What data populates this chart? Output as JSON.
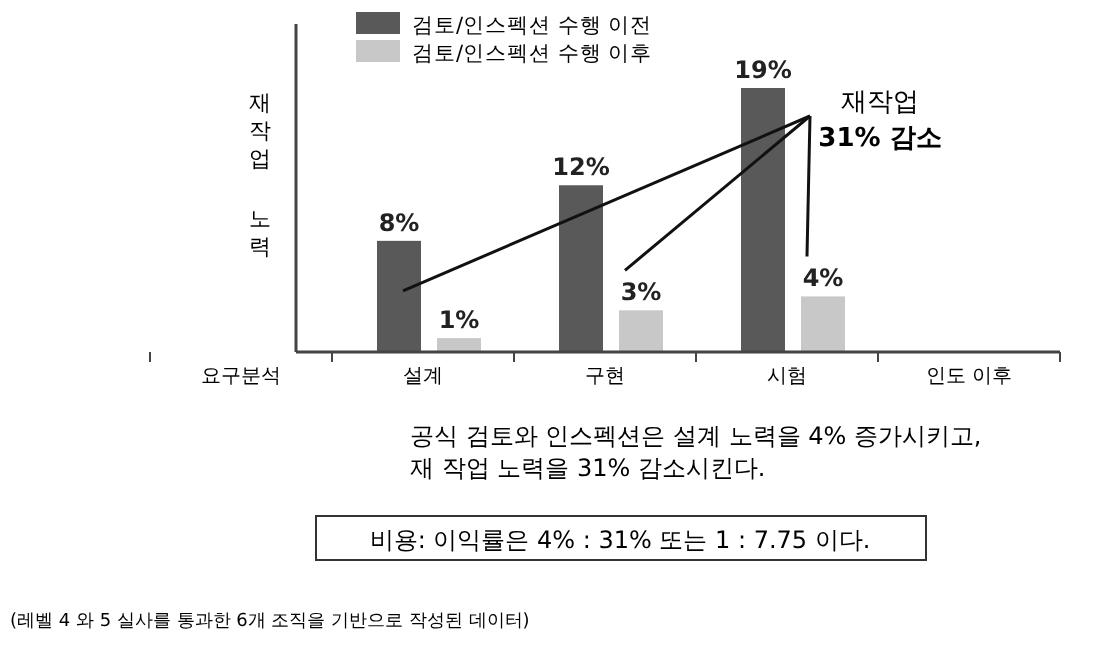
{
  "chart_data": {
    "type": "bar",
    "ylabel": "재작업 노력",
    "categories": [
      "요구분석",
      "설계",
      "구현",
      "시험",
      "인도 이후"
    ],
    "series": [
      {
        "name": "검토/인스펙션 수행 이전",
        "color": "#595959",
        "values": [
          null,
          8,
          12,
          19,
          null
        ],
        "value_labels": [
          null,
          "8%",
          "12%",
          "19%",
          null
        ]
      },
      {
        "name": "검토/인스펙션 수행 이후",
        "color": "#c8c8c8",
        "values": [
          null,
          1,
          3,
          4,
          null
        ],
        "value_labels": [
          null,
          "1%",
          "3%",
          "4%",
          null
        ]
      }
    ],
    "legend": "top left",
    "annotations": [
      "재작업\n31% 감소",
      "공식 검토와 인스펙션은 설계 노력을 4% 증가시키고,\n재 작업 노력을 31% 감소시킨다.",
      "비용: 이익률은 4% : 31% 또는 1 : 7.75 이다.",
      "(레벨 4 와 5 실사를 통과한 6개 조직을 기반으로 작성된 데이터)"
    ]
  }
}
